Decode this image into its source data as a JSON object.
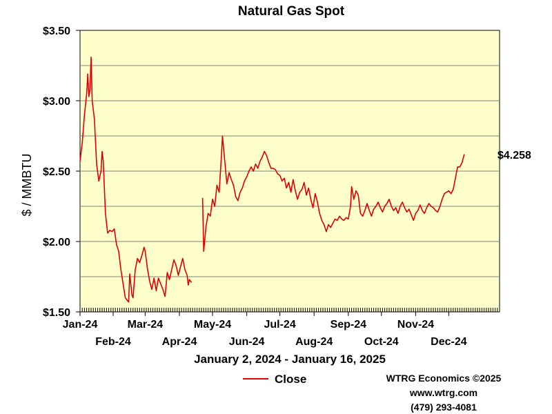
{
  "colors": {
    "plot_background": "#ffffcc",
    "series_line": "#dd0000",
    "grid": "#808080",
    "axis": "#000000"
  },
  "credits": {
    "line1": "WTRG Economics ©2025",
    "line2": "www.wtrg.com",
    "line3": "(479) 293-4081"
  },
  "chart_data": {
    "type": "line",
    "title": "Natural Gas Spot",
    "subtitle": "January 2, 2024 - January 16, 2025",
    "xlabel": "",
    "ylabel": "$ / MMBTU",
    "ylim": [
      1.5,
      3.5
    ],
    "y_ticks": [
      1.5,
      2.0,
      2.5,
      3.0,
      3.5
    ],
    "y_tick_labels": [
      "$1.50",
      "$2.00",
      "$2.50",
      "$3.00",
      "$3.50"
    ],
    "xlim": [
      "2024-01-02",
      "2025-01-16"
    ],
    "x_ticks": [
      {
        "date": "2024-01-01",
        "label": "Jan-24",
        "row": 1
      },
      {
        "date": "2024-02-01",
        "label": "Feb-24",
        "row": 2
      },
      {
        "date": "2024-03-01",
        "label": "Mar-24",
        "row": 1
      },
      {
        "date": "2024-04-01",
        "label": "Apr-24",
        "row": 2
      },
      {
        "date": "2024-05-01",
        "label": "May-24",
        "row": 1
      },
      {
        "date": "2024-06-01",
        "label": "Jun-24",
        "row": 2
      },
      {
        "date": "2024-07-01",
        "label": "Jul-24",
        "row": 1
      },
      {
        "date": "2024-08-01",
        "label": "Aug-24",
        "row": 2
      },
      {
        "date": "2024-09-01",
        "label": "Sep-24",
        "row": 1
      },
      {
        "date": "2024-10-01",
        "label": "Oct-24",
        "row": 2
      },
      {
        "date": "2024-11-01",
        "label": "Nov-24",
        "row": 1
      },
      {
        "date": "2024-12-01",
        "label": "Dec-24",
        "row": 2
      }
    ],
    "grid": true,
    "legend": {
      "position": "bottom",
      "entries": [
        "Close"
      ]
    },
    "last_value_label": "$4.258",
    "series": [
      {
        "name": "Close",
        "segments": [
          [
            [
              "2024-01-02",
              2.57
            ],
            [
              "2024-01-04",
              2.7
            ],
            [
              "2024-01-06",
              2.9
            ],
            [
              "2024-01-08",
              3.05
            ],
            [
              "2024-01-09",
              3.19
            ],
            [
              "2024-01-10",
              3.03
            ],
            [
              "2024-01-11",
              3.08
            ],
            [
              "2024-01-12",
              3.31
            ],
            [
              "2024-01-13",
              3.0
            ],
            [
              "2024-01-15",
              2.87
            ],
            [
              "2024-01-17",
              2.55
            ],
            [
              "2024-01-19",
              2.43
            ],
            [
              "2024-01-21",
              2.5
            ],
            [
              "2024-01-22",
              2.64
            ],
            [
              "2024-01-23",
              2.57
            ],
            [
              "2024-01-25",
              2.2
            ],
            [
              "2024-01-27",
              2.06
            ],
            [
              "2024-01-29",
              2.08
            ],
            [
              "2024-01-31",
              2.07
            ],
            [
              "2024-02-02",
              2.09
            ],
            [
              "2024-02-04",
              1.98
            ],
            [
              "2024-02-06",
              1.93
            ],
            [
              "2024-02-08",
              1.8
            ],
            [
              "2024-02-10",
              1.7
            ],
            [
              "2024-02-12",
              1.6
            ],
            [
              "2024-02-14",
              1.58
            ],
            [
              "2024-02-15",
              1.57
            ],
            [
              "2024-02-16",
              1.77
            ],
            [
              "2024-02-18",
              1.62
            ],
            [
              "2024-02-19",
              1.6
            ],
            [
              "2024-02-21",
              1.8
            ],
            [
              "2024-02-23",
              1.88
            ],
            [
              "2024-02-25",
              1.85
            ],
            [
              "2024-02-27",
              1.9
            ],
            [
              "2024-02-29",
              1.96
            ],
            [
              "2024-03-01",
              1.93
            ],
            [
              "2024-03-03",
              1.81
            ],
            [
              "2024-03-05",
              1.72
            ],
            [
              "2024-03-07",
              1.66
            ],
            [
              "2024-03-09",
              1.74
            ],
            [
              "2024-03-11",
              1.65
            ],
            [
              "2024-03-13",
              1.74
            ],
            [
              "2024-03-15",
              1.7
            ],
            [
              "2024-03-17",
              1.66
            ],
            [
              "2024-03-19",
              1.61
            ],
            [
              "2024-03-21",
              1.78
            ],
            [
              "2024-03-23",
              1.73
            ],
            [
              "2024-03-25",
              1.8
            ],
            [
              "2024-03-27",
              1.87
            ],
            [
              "2024-03-29",
              1.83
            ],
            [
              "2024-03-31",
              1.76
            ],
            [
              "2024-04-02",
              1.82
            ],
            [
              "2024-04-04",
              1.88
            ],
            [
              "2024-04-06",
              1.8
            ],
            [
              "2024-04-08",
              1.76
            ],
            [
              "2024-04-09",
              1.69
            ],
            [
              "2024-04-10",
              1.73
            ],
            [
              "2024-04-12",
              1.71
            ]
          ],
          [
            [
              "2024-04-22",
              2.31
            ],
            [
              "2024-04-23",
              1.93
            ],
            [
              "2024-04-25",
              2.1
            ],
            [
              "2024-04-27",
              2.2
            ],
            [
              "2024-04-29",
              2.18
            ],
            [
              "2024-05-01",
              2.3
            ],
            [
              "2024-05-03",
              2.25
            ],
            [
              "2024-05-05",
              2.4
            ],
            [
              "2024-05-07",
              2.35
            ],
            [
              "2024-05-09",
              2.6
            ],
            [
              "2024-05-10",
              2.75
            ],
            [
              "2024-05-12",
              2.58
            ],
            [
              "2024-05-14",
              2.41
            ],
            [
              "2024-05-16",
              2.49
            ],
            [
              "2024-05-18",
              2.44
            ],
            [
              "2024-05-20",
              2.4
            ],
            [
              "2024-05-22",
              2.32
            ],
            [
              "2024-05-24",
              2.29
            ],
            [
              "2024-05-26",
              2.35
            ],
            [
              "2024-05-28",
              2.38
            ],
            [
              "2024-05-30",
              2.43
            ],
            [
              "2024-06-01",
              2.46
            ],
            [
              "2024-06-03",
              2.5
            ],
            [
              "2024-06-05",
              2.53
            ],
            [
              "2024-06-07",
              2.5
            ],
            [
              "2024-06-09",
              2.55
            ],
            [
              "2024-06-11",
              2.52
            ],
            [
              "2024-06-13",
              2.57
            ],
            [
              "2024-06-15",
              2.6
            ],
            [
              "2024-06-17",
              2.64
            ],
            [
              "2024-06-19",
              2.61
            ],
            [
              "2024-06-21",
              2.56
            ],
            [
              "2024-06-23",
              2.52
            ],
            [
              "2024-06-25",
              2.52
            ],
            [
              "2024-06-27",
              2.51
            ],
            [
              "2024-06-29",
              2.48
            ],
            [
              "2024-07-01",
              2.47
            ],
            [
              "2024-07-03",
              2.43
            ],
            [
              "2024-07-05",
              2.45
            ],
            [
              "2024-07-07",
              2.38
            ],
            [
              "2024-07-09",
              2.42
            ],
            [
              "2024-07-11",
              2.35
            ],
            [
              "2024-07-13",
              2.44
            ],
            [
              "2024-07-15",
              2.36
            ],
            [
              "2024-07-17",
              2.3
            ],
            [
              "2024-07-19",
              2.35
            ],
            [
              "2024-07-21",
              2.37
            ],
            [
              "2024-07-23",
              2.42
            ],
            [
              "2024-07-25",
              2.33
            ],
            [
              "2024-07-27",
              2.38
            ],
            [
              "2024-07-29",
              2.3
            ],
            [
              "2024-07-31",
              2.24
            ],
            [
              "2024-08-02",
              2.34
            ],
            [
              "2024-08-04",
              2.28
            ],
            [
              "2024-08-06",
              2.2
            ],
            [
              "2024-08-08",
              2.15
            ],
            [
              "2024-08-10",
              2.12
            ],
            [
              "2024-08-12",
              2.07
            ],
            [
              "2024-08-14",
              2.12
            ],
            [
              "2024-08-16",
              2.1
            ],
            [
              "2024-08-18",
              2.13
            ],
            [
              "2024-08-20",
              2.16
            ],
            [
              "2024-08-22",
              2.15
            ],
            [
              "2024-08-24",
              2.18
            ],
            [
              "2024-08-26",
              2.16
            ],
            [
              "2024-08-28",
              2.15
            ],
            [
              "2024-08-30",
              2.17
            ],
            [
              "2024-09-01",
              2.16
            ],
            [
              "2024-09-03",
              2.25
            ],
            [
              "2024-09-04",
              2.39
            ],
            [
              "2024-09-06",
              2.3
            ],
            [
              "2024-09-08",
              2.36
            ],
            [
              "2024-09-10",
              2.33
            ],
            [
              "2024-09-12",
              2.2
            ],
            [
              "2024-09-14",
              2.18
            ],
            [
              "2024-09-16",
              2.22
            ],
            [
              "2024-09-18",
              2.27
            ],
            [
              "2024-09-20",
              2.22
            ],
            [
              "2024-09-22",
              2.18
            ],
            [
              "2024-09-24",
              2.23
            ],
            [
              "2024-09-26",
              2.25
            ],
            [
              "2024-09-28",
              2.28
            ],
            [
              "2024-09-30",
              2.24
            ],
            [
              "2024-10-02",
              2.21
            ],
            [
              "2024-10-04",
              2.25
            ],
            [
              "2024-10-06",
              2.27
            ],
            [
              "2024-10-08",
              2.3
            ],
            [
              "2024-10-10",
              2.25
            ],
            [
              "2024-10-12",
              2.22
            ],
            [
              "2024-10-14",
              2.24
            ],
            [
              "2024-10-16",
              2.2
            ],
            [
              "2024-10-18",
              2.25
            ],
            [
              "2024-10-20",
              2.28
            ],
            [
              "2024-10-22",
              2.24
            ],
            [
              "2024-10-24",
              2.21
            ],
            [
              "2024-10-26",
              2.23
            ],
            [
              "2024-10-28",
              2.19
            ],
            [
              "2024-10-30",
              2.15
            ],
            [
              "2024-11-01",
              2.2
            ],
            [
              "2024-11-03",
              2.22
            ],
            [
              "2024-11-05",
              2.26
            ],
            [
              "2024-11-07",
              2.22
            ],
            [
              "2024-11-09",
              2.2
            ],
            [
              "2024-11-11",
              2.24
            ],
            [
              "2024-11-13",
              2.27
            ],
            [
              "2024-11-15",
              2.25
            ],
            [
              "2024-11-17",
              2.24
            ],
            [
              "2024-11-19",
              2.22
            ],
            [
              "2024-11-21",
              2.21
            ],
            [
              "2024-11-23",
              2.25
            ],
            [
              "2024-11-25",
              2.3
            ],
            [
              "2024-11-27",
              2.34
            ],
            [
              "2024-11-29",
              2.35
            ],
            [
              "2024-12-01",
              2.36
            ],
            [
              "2024-12-03",
              2.34
            ],
            [
              "2024-12-05",
              2.37
            ],
            [
              "2024-12-07",
              2.45
            ],
            [
              "2024-12-09",
              2.53
            ],
            [
              "2024-12-11",
              2.53
            ],
            [
              "2024-12-13",
              2.56
            ],
            [
              "2024-12-15",
              2.62
            ]
          ]
        ]
      }
    ]
  }
}
